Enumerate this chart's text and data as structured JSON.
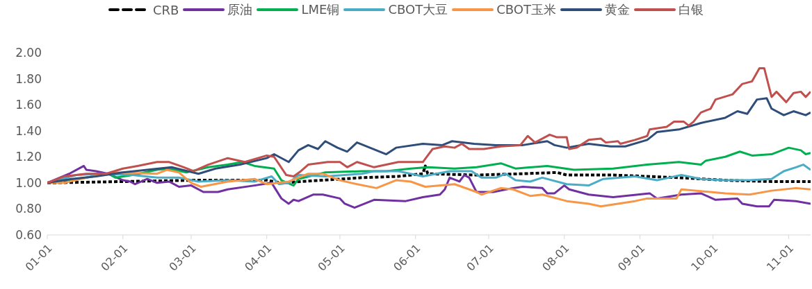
{
  "chart_data": {
    "type": "line",
    "xlim": [
      "--01-01",
      "--11-10"
    ],
    "xticks": [
      {
        "value": "--01-01",
        "label": "01-01"
      },
      {
        "value": "--02-01",
        "label": "02-01"
      },
      {
        "value": "--03-01",
        "label": "03-01"
      },
      {
        "value": "--04-01",
        "label": "04-01"
      },
      {
        "value": "--05-01",
        "label": "05-01"
      },
      {
        "value": "--06-01",
        "label": "06-01"
      },
      {
        "value": "--07-01",
        "label": "07-01"
      },
      {
        "value": "--08-01",
        "label": "08-01"
      },
      {
        "value": "--09-01",
        "label": "09-01"
      },
      {
        "value": "--10-01",
        "label": "10-01"
      },
      {
        "value": "--11-01",
        "label": "11-01"
      }
    ],
    "ylim": [
      0.6,
      2.0
    ],
    "yticks": [
      {
        "value": 0.6,
        "label": "0.60"
      },
      {
        "value": 0.8,
        "label": "0.80"
      },
      {
        "value": 1.0,
        "label": "1.00"
      },
      {
        "value": 1.2,
        "label": "1.20"
      },
      {
        "value": 1.4,
        "label": "1.40"
      },
      {
        "value": 1.6,
        "label": "1.60"
      },
      {
        "value": 1.8,
        "label": "1.80"
      },
      {
        "value": 2.0,
        "label": "2.00"
      }
    ],
    "grid": false,
    "legend": "top",
    "marker": "none",
    "series": [
      {
        "name": "CRB",
        "color": "#000000",
        "line_style": "dashed",
        "x": [
          "--01-01",
          "--02-01",
          "--03-01",
          "--04-01",
          "--04-07",
          "--05-10",
          "--05-25",
          "--06-04",
          "--06-05",
          "--06-06",
          "--06-26",
          "--07-15",
          "--07-29",
          "--08-02",
          "--08-21",
          "--09-17",
          "--10-06",
          "--10-25",
          "--11-10"
        ],
        "values": [
          1.0,
          1.01,
          1.02,
          1.02,
          1.0,
          1.04,
          1.05,
          1.07,
          1.13,
          1.07,
          1.06,
          1.07,
          1.08,
          1.06,
          1.06,
          1.04,
          1.02,
          1.01,
          1.01
        ]
      },
      {
        "name": "原油",
        "color": "#7030a0",
        "x": [
          "--01-01",
          "--01-10",
          "--01-14",
          "--01-16",
          "--01-17",
          "--01-21",
          "--01-26",
          "--02-01",
          "--02-04",
          "--02-06",
          "--02-11",
          "--02-15",
          "--02-20",
          "--02-24",
          "--03-01",
          "--03-06",
          "--03-12",
          "--03-16",
          "--03-27",
          "--04-03",
          "--04-07",
          "--04-10",
          "--04-12",
          "--04-14",
          "--04-20",
          "--04-24",
          "--05-01",
          "--05-03",
          "--05-07",
          "--05-15",
          "--05-28",
          "--06-04",
          "--06-11",
          "--06-13",
          "--06-15",
          "--06-19",
          "--06-21",
          "--06-23",
          "--06-26",
          "--07-03",
          "--07-11",
          "--07-15",
          "--07-23",
          "--07-25",
          "--07-28",
          "--08-01",
          "--08-03",
          "--08-11",
          "--08-21",
          "--09-05",
          "--09-08",
          "--09-18",
          "--09-26",
          "--10-02",
          "--10-11",
          "--10-13",
          "--10-19",
          "--10-24",
          "--10-26",
          "--11-04",
          "--11-10"
        ],
        "values": [
          1.0,
          1.07,
          1.11,
          1.13,
          1.1,
          1.09,
          1.07,
          1.02,
          1.01,
          0.99,
          1.03,
          1.0,
          1.01,
          0.97,
          0.98,
          0.93,
          0.93,
          0.95,
          0.98,
          1.0,
          0.88,
          0.84,
          0.87,
          0.86,
          0.91,
          0.91,
          0.88,
          0.84,
          0.81,
          0.87,
          0.86,
          0.89,
          0.91,
          0.95,
          1.04,
          1.01,
          1.06,
          1.04,
          0.93,
          0.93,
          0.96,
          0.97,
          0.96,
          0.92,
          0.92,
          0.98,
          0.95,
          0.91,
          0.89,
          0.92,
          0.88,
          0.91,
          0.92,
          0.87,
          0.88,
          0.84,
          0.82,
          0.82,
          0.87,
          0.86,
          0.84
        ]
      },
      {
        "name": "LME铜",
        "color": "#00b050",
        "x": [
          "--01-01",
          "--01-17",
          "--01-26",
          "--01-29",
          "--02-05",
          "--02-15",
          "--02-20",
          "--02-27",
          "--03-08",
          "--03-16",
          "--03-22",
          "--03-27",
          "--04-04",
          "--04-07",
          "--04-12",
          "--04-14",
          "--04-25",
          "--05-10",
          "--05-20",
          "--05-30",
          "--06-06",
          "--06-17",
          "--06-26",
          "--07-06",
          "--07-12",
          "--07-25",
          "--08-05",
          "--08-21",
          "--09-04",
          "--09-17",
          "--09-26",
          "--09-28",
          "--10-06",
          "--10-12",
          "--10-17",
          "--10-25",
          "--11-01",
          "--11-06",
          "--11-08",
          "--11-10"
        ],
        "values": [
          1.0,
          1.04,
          1.07,
          1.04,
          1.06,
          1.1,
          1.11,
          1.08,
          1.12,
          1.14,
          1.16,
          1.13,
          1.11,
          1.02,
          0.98,
          1.03,
          1.08,
          1.09,
          1.09,
          1.11,
          1.12,
          1.11,
          1.12,
          1.15,
          1.11,
          1.13,
          1.1,
          1.11,
          1.14,
          1.16,
          1.14,
          1.17,
          1.2,
          1.24,
          1.21,
          1.22,
          1.27,
          1.25,
          1.22,
          1.23
        ]
      },
      {
        "name": "CBOT大豆",
        "color": "#4bacc6",
        "x": [
          "--01-01",
          "--01-13",
          "--01-23",
          "--02-05",
          "--02-15",
          "--02-24",
          "--03-04",
          "--03-16",
          "--03-27",
          "--04-03",
          "--04-06",
          "--04-10",
          "--04-14",
          "--04-25",
          "--05-10",
          "--05-15",
          "--05-25",
          "--06-04",
          "--06-15",
          "--06-24",
          "--06-28",
          "--07-04",
          "--07-08",
          "--07-12",
          "--07-18",
          "--07-23",
          "--08-02",
          "--08-11",
          "--08-17",
          "--08-30",
          "--09-08",
          "--09-18",
          "--09-26",
          "--10-06",
          "--10-16",
          "--10-25",
          "--10-30",
          "--11-04",
          "--11-07",
          "--11-10"
        ],
        "values": [
          1.0,
          1.06,
          1.07,
          1.06,
          1.04,
          1.04,
          1.01,
          1.02,
          1.01,
          1.05,
          0.99,
          1.0,
          1.06,
          1.05,
          1.07,
          1.09,
          1.09,
          1.05,
          1.09,
          1.09,
          1.04,
          1.04,
          1.07,
          1.02,
          1.01,
          1.04,
          0.99,
          0.98,
          1.03,
          1.05,
          1.02,
          1.06,
          1.03,
          1.02,
          1.02,
          1.03,
          1.09,
          1.12,
          1.14,
          1.1
        ]
      },
      {
        "name": "CBOT玉米",
        "color": "#f79646",
        "x": [
          "--01-01",
          "--01-08",
          "--01-17",
          "--01-29",
          "--02-15",
          "--02-19",
          "--02-24",
          "--03-01",
          "--03-05",
          "--03-16",
          "--03-27",
          "--04-01",
          "--04-10",
          "--04-14",
          "--04-18",
          "--04-24",
          "--05-01",
          "--05-08",
          "--05-16",
          "--05-24",
          "--05-30",
          "--06-05",
          "--06-17",
          "--06-26",
          "--06-28",
          "--07-06",
          "--07-11",
          "--07-18",
          "--07-23",
          "--08-02",
          "--08-11",
          "--08-16",
          "--08-30",
          "--09-04",
          "--09-16",
          "--09-18",
          "--10-06",
          "--10-16",
          "--10-25",
          "--11-04",
          "--11-10"
        ],
        "values": [
          1.0,
          1.0,
          1.04,
          1.08,
          1.07,
          1.1,
          1.08,
          1.0,
          0.97,
          1.01,
          1.03,
          0.99,
          1.01,
          1.04,
          1.07,
          1.07,
          1.02,
          0.99,
          0.96,
          1.02,
          1.01,
          0.97,
          0.99,
          0.93,
          0.91,
          0.96,
          0.95,
          0.9,
          0.91,
          0.86,
          0.84,
          0.82,
          0.86,
          0.88,
          0.88,
          0.95,
          0.92,
          0.91,
          0.94,
          0.96,
          0.95
        ]
      },
      {
        "name": "黄金",
        "color": "#2e4d78",
        "x": [
          "--01-01",
          "--01-11",
          "--01-21",
          "--02-01",
          "--02-11",
          "--02-21",
          "--03-04",
          "--03-11",
          "--03-21",
          "--04-01",
          "--04-04",
          "--04-10",
          "--04-14",
          "--04-18",
          "--04-22",
          "--04-25",
          "--04-30",
          "--05-04",
          "--05-08",
          "--05-20",
          "--05-24",
          "--06-04",
          "--06-12",
          "--06-16",
          "--06-25",
          "--07-04",
          "--07-15",
          "--07-25",
          "--07-28",
          "--08-02",
          "--08-11",
          "--08-20",
          "--08-26",
          "--09-04",
          "--09-08",
          "--09-17",
          "--09-26",
          "--10-06",
          "--10-11",
          "--10-15",
          "--10-19",
          "--10-23",
          "--10-25",
          "--10-30",
          "--11-03",
          "--11-08",
          "--11-10"
        ],
        "values": [
          1.0,
          1.03,
          1.05,
          1.08,
          1.1,
          1.12,
          1.07,
          1.11,
          1.14,
          1.19,
          1.22,
          1.16,
          1.25,
          1.29,
          1.26,
          1.32,
          1.27,
          1.24,
          1.31,
          1.22,
          1.27,
          1.3,
          1.29,
          1.32,
          1.3,
          1.29,
          1.29,
          1.32,
          1.29,
          1.27,
          1.3,
          1.28,
          1.28,
          1.33,
          1.39,
          1.41,
          1.46,
          1.5,
          1.55,
          1.53,
          1.64,
          1.65,
          1.57,
          1.52,
          1.55,
          1.52,
          1.54
        ]
      },
      {
        "name": "白银",
        "color": "#c0504d",
        "x": [
          "--01-01",
          "--01-08",
          "--01-17",
          "--01-25",
          "--02-01",
          "--02-07",
          "--02-15",
          "--02-20",
          "--02-26",
          "--03-02",
          "--03-08",
          "--03-16",
          "--03-23",
          "--04-01",
          "--04-04",
          "--04-09",
          "--04-12",
          "--04-15",
          "--04-18",
          "--04-26",
          "--05-01",
          "--05-04",
          "--05-08",
          "--05-15",
          "--05-25",
          "--06-04",
          "--06-06",
          "--06-08",
          "--06-13",
          "--06-17",
          "--06-20",
          "--06-23",
          "--06-29",
          "--07-06",
          "--07-14",
          "--07-17",
          "--07-20",
          "--07-26",
          "--07-29",
          "--08-02",
          "--08-03",
          "--08-06",
          "--08-11",
          "--08-16",
          "--08-18",
          "--08-23",
          "--08-24",
          "--08-30",
          "--09-04",
          "--09-05",
          "--09-12",
          "--09-15",
          "--09-19",
          "--09-21",
          "--09-23",
          "--09-26",
          "--09-30",
          "--10-02",
          "--10-09",
          "--10-13",
          "--10-17",
          "--10-20",
          "--10-22",
          "--10-25",
          "--10-27",
          "--10-31",
          "--11-03",
          "--11-06",
          "--11-08",
          "--11-10"
        ],
        "values": [
          1.0,
          1.05,
          1.07,
          1.07,
          1.11,
          1.13,
          1.16,
          1.16,
          1.12,
          1.09,
          1.14,
          1.19,
          1.16,
          1.21,
          1.2,
          1.06,
          1.05,
          1.09,
          1.14,
          1.16,
          1.16,
          1.12,
          1.16,
          1.12,
          1.16,
          1.16,
          1.21,
          1.26,
          1.28,
          1.27,
          1.3,
          1.26,
          1.26,
          1.28,
          1.29,
          1.36,
          1.31,
          1.37,
          1.35,
          1.35,
          1.26,
          1.27,
          1.33,
          1.34,
          1.31,
          1.32,
          1.3,
          1.33,
          1.36,
          1.41,
          1.43,
          1.47,
          1.47,
          1.44,
          1.47,
          1.54,
          1.57,
          1.64,
          1.68,
          1.76,
          1.78,
          1.88,
          1.88,
          1.66,
          1.7,
          1.62,
          1.69,
          1.7,
          1.66,
          1.7
        ]
      }
    ]
  }
}
